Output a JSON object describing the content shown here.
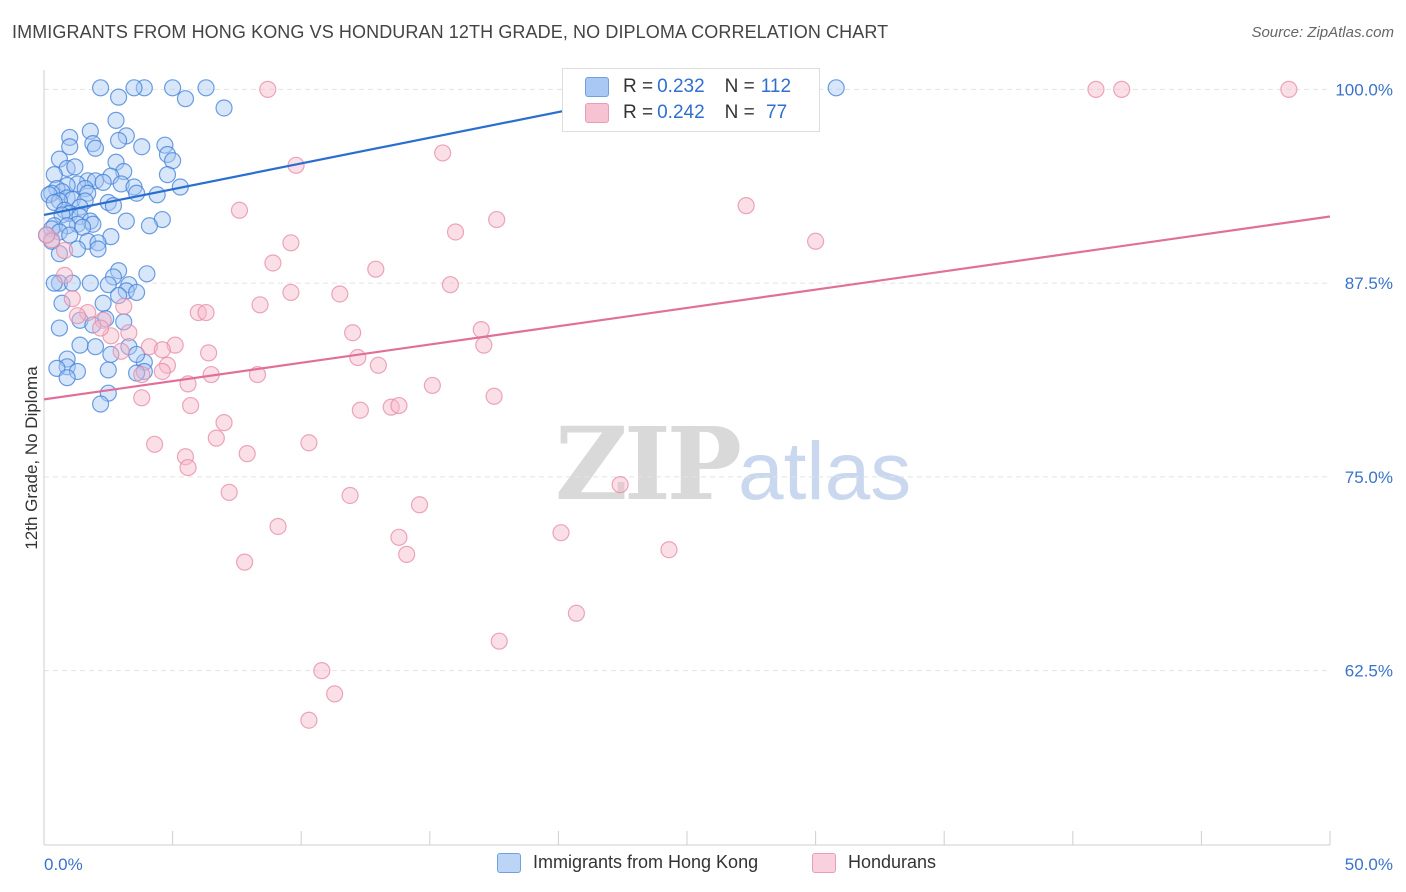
{
  "title": "IMMIGRANTS FROM HONG KONG VS HONDURAN 12TH GRADE, NO DIPLOMA CORRELATION CHART",
  "source": "Source: ZipAtlas.com",
  "watermark": {
    "zip": "ZIP",
    "atlas": "atlas"
  },
  "legend_top": {
    "rows": [
      {
        "r_label": "R = ",
        "r_value": "0.232",
        "n_label": "N = ",
        "n_value": "112"
      },
      {
        "r_label": "R = ",
        "r_value": "0.242",
        "n_label": "N = ",
        "n_value": " 77"
      }
    ]
  },
  "legend_bottom": {
    "items": [
      "Immigrants from Hong Kong",
      "Hondurans"
    ]
  },
  "colors": {
    "blue_fill": "#a9c8f3",
    "blue_stroke": "#3e7fd8",
    "blue_line": "#2a6fd0",
    "pink_fill": "#f6b7c9",
    "pink_stroke": "#e58aa7",
    "pink_line": "#e0709a",
    "tick_text": "#3a73c9",
    "grid": "#e3e3e3"
  },
  "chart_data": {
    "type": "scatter",
    "title": "IMMIGRANTS FROM HONG KONG VS HONDURAN 12TH GRADE, NO DIPLOMA CORRELATION CHART",
    "xlabel": "",
    "ylabel": "12th Grade, No Diploma",
    "xlim": [
      0,
      50
    ],
    "ylim": [
      51.25,
      101.25
    ],
    "x_tick_labels": [
      {
        "value": 0,
        "label": "0.0%"
      },
      {
        "value": 50,
        "label": "50.0%"
      }
    ],
    "y_ticks": [
      {
        "value": 100.0,
        "label": "100.0%"
      },
      {
        "value": 87.5,
        "label": "87.5%"
      },
      {
        "value": 75.0,
        "label": "75.0%"
      },
      {
        "value": 62.5,
        "label": "62.5%"
      }
    ],
    "grid": true,
    "legend_position": "top-center",
    "series": [
      {
        "name": "Immigrants from Hong Kong",
        "r": 0.232,
        "n": 112,
        "trend": {
          "x": [
            0,
            25
          ],
          "y": [
            91.9,
            100.2
          ]
        },
        "points": [
          [
            2.2,
            100.1
          ],
          [
            3.9,
            100.1
          ],
          [
            5.0,
            100.1
          ],
          [
            6.3,
            100.1
          ],
          [
            3.5,
            100.1
          ],
          [
            30.8,
            100.1
          ],
          [
            2.9,
            99.5
          ],
          [
            5.5,
            99.4
          ],
          [
            7.0,
            98.8
          ],
          [
            2.8,
            98.0
          ],
          [
            1.8,
            97.3
          ],
          [
            1.0,
            96.9
          ],
          [
            3.2,
            97.0
          ],
          [
            2.9,
            96.7
          ],
          [
            1.9,
            96.5
          ],
          [
            1.0,
            96.3
          ],
          [
            3.8,
            96.3
          ],
          [
            4.7,
            96.4
          ],
          [
            2.0,
            96.2
          ],
          [
            4.8,
            95.8
          ],
          [
            0.6,
            95.5
          ],
          [
            5.0,
            95.4
          ],
          [
            2.8,
            95.3
          ],
          [
            0.9,
            94.9
          ],
          [
            1.2,
            95.0
          ],
          [
            3.1,
            94.7
          ],
          [
            4.8,
            94.5
          ],
          [
            0.4,
            94.5
          ],
          [
            2.6,
            94.4
          ],
          [
            1.7,
            94.1
          ],
          [
            2.0,
            94.1
          ],
          [
            2.3,
            94.0
          ],
          [
            3.0,
            93.9
          ],
          [
            1.3,
            93.9
          ],
          [
            0.9,
            93.8
          ],
          [
            3.5,
            93.7
          ],
          [
            5.3,
            93.7
          ],
          [
            0.5,
            93.6
          ],
          [
            1.6,
            93.6
          ],
          [
            0.7,
            93.4
          ],
          [
            0.3,
            93.3
          ],
          [
            1.7,
            93.3
          ],
          [
            3.6,
            93.3
          ],
          [
            0.2,
            93.2
          ],
          [
            4.4,
            93.2
          ],
          [
            0.9,
            93.0
          ],
          [
            1.1,
            92.9
          ],
          [
            1.6,
            92.8
          ],
          [
            0.6,
            92.8
          ],
          [
            0.4,
            92.7
          ],
          [
            2.5,
            92.7
          ],
          [
            2.7,
            92.5
          ],
          [
            1.4,
            92.4
          ],
          [
            0.8,
            92.2
          ],
          [
            1.0,
            92.0
          ],
          [
            0.7,
            91.9
          ],
          [
            1.4,
            91.8
          ],
          [
            1.8,
            91.5
          ],
          [
            3.2,
            91.5
          ],
          [
            4.6,
            91.6
          ],
          [
            1.9,
            91.3
          ],
          [
            1.3,
            91.3
          ],
          [
            0.4,
            91.2
          ],
          [
            1.5,
            91.1
          ],
          [
            0.9,
            91.2
          ],
          [
            0.3,
            91.0
          ],
          [
            4.1,
            91.2
          ],
          [
            0.6,
            90.8
          ],
          [
            0.1,
            90.6
          ],
          [
            1.0,
            90.6
          ],
          [
            2.6,
            90.5
          ],
          [
            1.7,
            90.2
          ],
          [
            2.1,
            90.1
          ],
          [
            0.3,
            90.2
          ],
          [
            1.3,
            89.7
          ],
          [
            2.1,
            89.7
          ],
          [
            0.6,
            89.4
          ],
          [
            2.9,
            88.3
          ],
          [
            4.0,
            88.1
          ],
          [
            2.7,
            87.9
          ],
          [
            0.6,
            87.5
          ],
          [
            0.4,
            87.5
          ],
          [
            3.3,
            87.4
          ],
          [
            1.8,
            87.5
          ],
          [
            2.5,
            87.4
          ],
          [
            1.1,
            87.5
          ],
          [
            3.2,
            87.0
          ],
          [
            3.6,
            86.9
          ],
          [
            2.9,
            86.7
          ],
          [
            2.3,
            86.2
          ],
          [
            0.7,
            86.2
          ],
          [
            2.4,
            85.2
          ],
          [
            1.4,
            85.1
          ],
          [
            3.1,
            85.0
          ],
          [
            1.9,
            84.8
          ],
          [
            0.6,
            84.6
          ],
          [
            2.0,
            83.4
          ],
          [
            3.3,
            83.4
          ],
          [
            1.4,
            83.5
          ],
          [
            0.9,
            82.6
          ],
          [
            3.9,
            82.4
          ],
          [
            3.6,
            82.9
          ],
          [
            0.9,
            82.1
          ],
          [
            0.5,
            82.0
          ],
          [
            3.9,
            81.8
          ],
          [
            2.5,
            81.9
          ],
          [
            1.3,
            81.8
          ],
          [
            0.9,
            81.4
          ],
          [
            2.5,
            80.4
          ],
          [
            2.2,
            79.7
          ],
          [
            3.6,
            81.7
          ],
          [
            2.6,
            82.9
          ]
        ]
      },
      {
        "name": "Hondurans",
        "r": 0.242,
        "n": 77,
        "trend": {
          "x": [
            0,
            50
          ],
          "y": [
            80.0,
            91.8
          ]
        },
        "points": [
          [
            8.7,
            100.0
          ],
          [
            40.9,
            100.0
          ],
          [
            41.9,
            100.0
          ],
          [
            48.4,
            100.0
          ],
          [
            15.5,
            95.9
          ],
          [
            9.8,
            95.1
          ],
          [
            27.3,
            92.5
          ],
          [
            7.6,
            92.2
          ],
          [
            17.6,
            91.6
          ],
          [
            16.0,
            90.8
          ],
          [
            9.6,
            90.1
          ],
          [
            30.0,
            90.2
          ],
          [
            0.3,
            90.3
          ],
          [
            0.8,
            89.6
          ],
          [
            8.9,
            88.8
          ],
          [
            12.9,
            88.4
          ],
          [
            0.8,
            88.0
          ],
          [
            15.8,
            87.4
          ],
          [
            9.6,
            86.9
          ],
          [
            11.5,
            86.8
          ],
          [
            1.1,
            86.5
          ],
          [
            8.4,
            86.1
          ],
          [
            3.1,
            86.0
          ],
          [
            1.7,
            85.6
          ],
          [
            6.0,
            85.6
          ],
          [
            1.3,
            85.4
          ],
          [
            2.3,
            85.1
          ],
          [
            17.0,
            84.5
          ],
          [
            12.0,
            84.3
          ],
          [
            3.3,
            84.3
          ],
          [
            2.6,
            84.1
          ],
          [
            5.1,
            83.5
          ],
          [
            17.1,
            83.5
          ],
          [
            4.1,
            83.4
          ],
          [
            3.0,
            83.1
          ],
          [
            6.4,
            83.0
          ],
          [
            12.2,
            82.7
          ],
          [
            4.8,
            82.2
          ],
          [
            13.0,
            82.2
          ],
          [
            4.6,
            81.8
          ],
          [
            3.8,
            81.6
          ],
          [
            6.5,
            81.6
          ],
          [
            8.3,
            81.6
          ],
          [
            5.6,
            81.0
          ],
          [
            15.1,
            80.9
          ],
          [
            3.8,
            80.1
          ],
          [
            17.5,
            80.2
          ],
          [
            13.5,
            79.5
          ],
          [
            13.8,
            79.6
          ],
          [
            12.3,
            79.3
          ],
          [
            5.7,
            79.6
          ],
          [
            7.0,
            78.5
          ],
          [
            6.7,
            77.5
          ],
          [
            10.3,
            77.2
          ],
          [
            4.3,
            77.1
          ],
          [
            7.9,
            76.5
          ],
          [
            5.5,
            76.3
          ],
          [
            5.6,
            75.6
          ],
          [
            22.4,
            74.5
          ],
          [
            7.2,
            74.0
          ],
          [
            11.9,
            73.8
          ],
          [
            14.6,
            73.2
          ],
          [
            9.1,
            71.8
          ],
          [
            20.1,
            71.4
          ],
          [
            13.8,
            71.1
          ],
          [
            14.1,
            70.0
          ],
          [
            24.3,
            70.3
          ],
          [
            7.8,
            69.5
          ],
          [
            20.7,
            66.2
          ],
          [
            17.7,
            64.4
          ],
          [
            10.8,
            62.5
          ],
          [
            11.3,
            61.0
          ],
          [
            10.3,
            59.3
          ],
          [
            0.1,
            90.6
          ],
          [
            6.3,
            85.6
          ],
          [
            2.2,
            84.6
          ],
          [
            4.6,
            83.2
          ]
        ]
      }
    ]
  }
}
